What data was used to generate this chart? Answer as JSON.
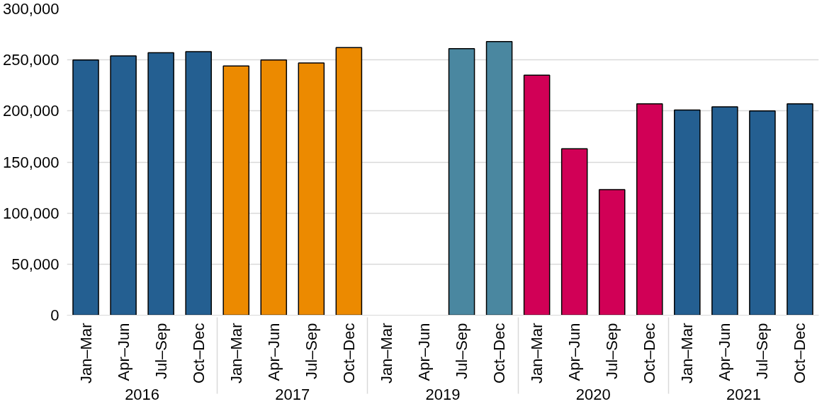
{
  "chart_data": {
    "type": "bar",
    "categories": [
      "Jan–Mar",
      "Apr–Jun",
      "Jul–Sep",
      "Oct–Dec",
      "Jan–Mar",
      "Apr–Jun",
      "Jul–Sep",
      "Oct–Dec",
      "Jan–Mar",
      "Apr–Jun",
      "Jul–Sep",
      "Oct–Dec",
      "Jan–Mar",
      "Apr–Jun",
      "Jul–Sep",
      "Oct–Dec",
      "Jan–Mar",
      "Apr–Jun",
      "Jul–Sep",
      "Oct–Dec"
    ],
    "annotations": [
      "2016",
      "2017",
      "2019",
      "2020",
      "2021"
    ],
    "values": [
      250000,
      254000,
      257000,
      258000,
      244000,
      250000,
      247000,
      262000,
      null,
      null,
      261000,
      268000,
      235000,
      163000,
      123000,
      207000,
      201000,
      204000,
      200000,
      207000
    ],
    "colors": [
      "#245f91",
      "#245f91",
      "#245f91",
      "#245f91",
      "#ec8a00",
      "#ec8a00",
      "#ec8a00",
      "#ec8a00",
      "#4a87a0",
      "#4a87a0",
      "#4a87a0",
      "#4a87a0",
      "#d10056",
      "#d10056",
      "#d10056",
      "#d10056",
      "#245f91",
      "#245f91",
      "#245f91",
      "#245f91"
    ],
    "ylim": [
      0,
      300000
    ],
    "yticks": [
      {
        "value": 0,
        "label": "0"
      },
      {
        "value": 50000,
        "label": "50,000"
      },
      {
        "value": 100000,
        "label": "100,000"
      },
      {
        "value": 150000,
        "label": "150,000"
      },
      {
        "value": 200000,
        "label": "200,000"
      },
      {
        "value": 250000,
        "label": "250,000"
      },
      {
        "value": 300000,
        "label": "300,000"
      }
    ],
    "grid": "y"
  }
}
